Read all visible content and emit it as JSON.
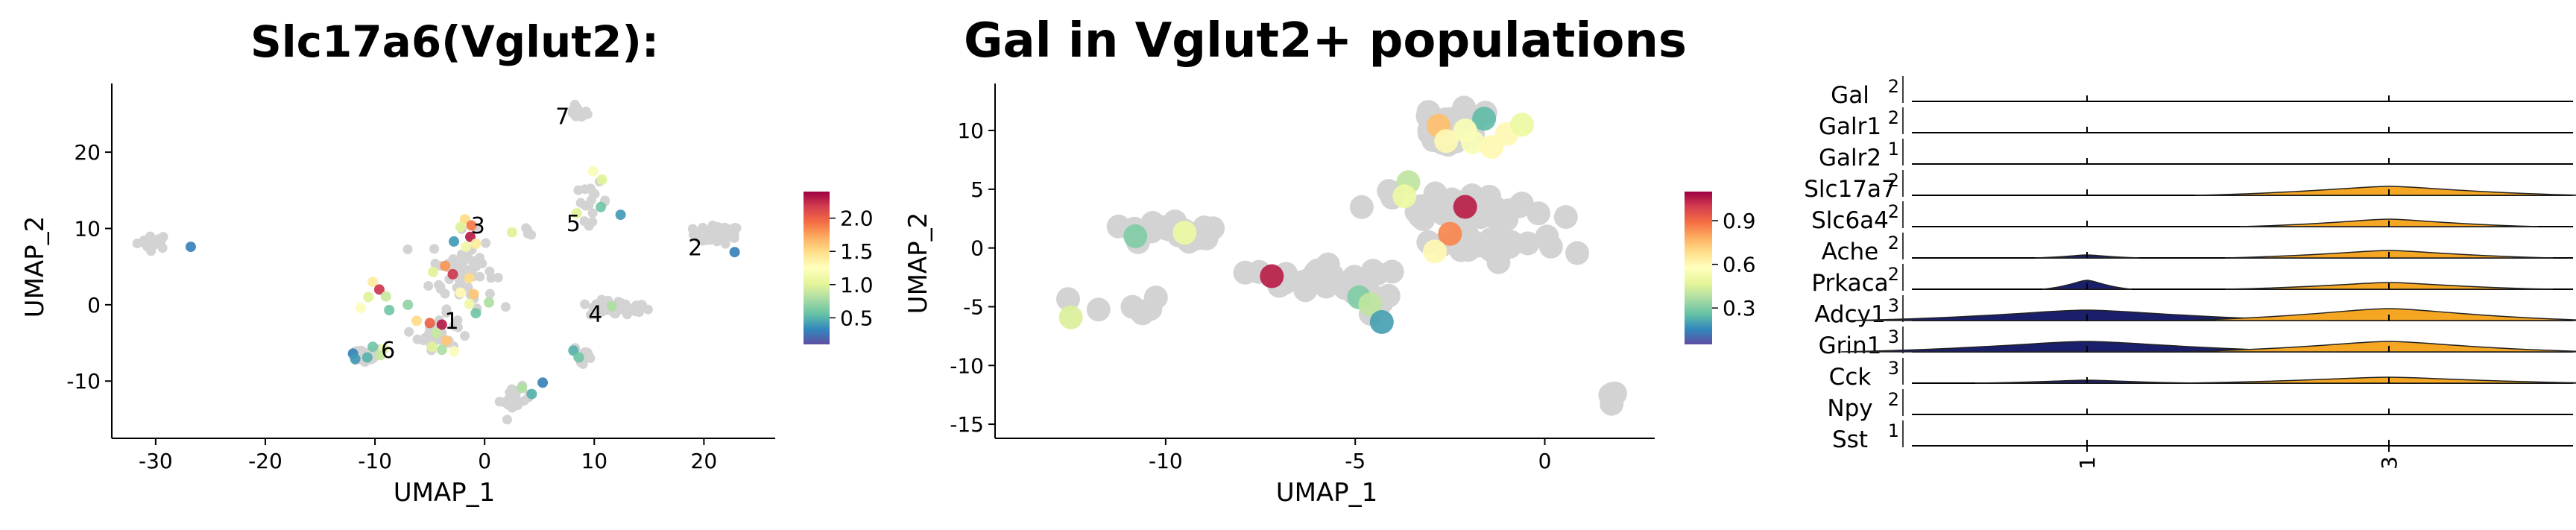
{
  "chart_data": [
    {
      "type": "scatter",
      "title": "Slc17a6(Vglut2):",
      "xlabel": "UMAP_1",
      "ylabel": "UMAP_2",
      "xlim": [
        -34,
        26.5
      ],
      "ylim": [
        -17.5,
        29
      ],
      "xticks": [
        -30,
        -20,
        -10,
        0,
        10,
        20
      ],
      "yticks": [
        -10,
        0,
        10,
        20
      ],
      "colorbar": {
        "cmap": "Spectral_r",
        "range": [
          0.1,
          2.4
        ],
        "ticks": [
          0.5,
          1.0,
          1.5,
          2.0
        ],
        "tick_labels": [
          "0.5",
          "1.0",
          "1.5",
          "2.0"
        ]
      },
      "grey_color": "#d3d3d3",
      "cluster_labels": [
        {
          "text": "1",
          "x": -3.0,
          "y": -2.3
        },
        {
          "text": "2",
          "x": 19.2,
          "y": 7.3
        },
        {
          "text": "3",
          "x": -0.6,
          "y": 10.2
        },
        {
          "text": "4",
          "x": 10.1,
          "y": -1.4
        },
        {
          "text": "5",
          "x": 8.1,
          "y": 10.5
        },
        {
          "text": "6",
          "x": -8.8,
          "y": -6.1
        },
        {
          "text": "7",
          "x": 7.1,
          "y": 24.5
        }
      ],
      "grey_clusters": [
        {
          "cx": -30.2,
          "cy": 8.3,
          "sx": 1.2,
          "sy": 0.8,
          "n": 22
        },
        {
          "cx": 21.2,
          "cy": 9.2,
          "sx": 1.8,
          "sy": 1.0,
          "n": 45
        },
        {
          "cx": 8.5,
          "cy": 25.2,
          "sx": 0.7,
          "sy": 0.7,
          "n": 18
        },
        {
          "cx": 12.3,
          "cy": -0.5,
          "sx": 2.3,
          "sy": 0.9,
          "n": 40
        },
        {
          "cx": -11.0,
          "cy": -6.6,
          "sx": 1.4,
          "sy": 0.9,
          "n": 30
        },
        {
          "cx": -2.0,
          "cy": 4.5,
          "sx": 2.4,
          "sy": 4.0,
          "n": 60
        },
        {
          "cx": -4.3,
          "cy": -3.8,
          "sx": 1.5,
          "sy": 1.7,
          "n": 30
        },
        {
          "cx": 2.8,
          "cy": -12.4,
          "sx": 1.2,
          "sy": 1.3,
          "n": 18
        },
        {
          "cx": 9.0,
          "cy": -6.8,
          "sx": 0.8,
          "sy": 1.3,
          "n": 15
        },
        {
          "cx": 9.8,
          "cy": 13.5,
          "sx": 1.2,
          "sy": 2.0,
          "n": 16
        },
        {
          "cx": 4.0,
          "cy": 9.6,
          "sx": 0.6,
          "sy": 0.4,
          "n": 4
        }
      ],
      "points": [
        {
          "x": -26.8,
          "y": 7.6,
          "v": 0.3
        },
        {
          "x": 22.8,
          "y": 6.9,
          "v": 0.3
        },
        {
          "x": 9.9,
          "y": 17.5,
          "v": 1.2
        },
        {
          "x": 10.7,
          "y": 16.4,
          "v": 1.0
        },
        {
          "x": 10.6,
          "y": 12.8,
          "v": 0.6
        },
        {
          "x": 12.4,
          "y": 11.8,
          "v": 0.4
        },
        {
          "x": 8.4,
          "y": 12.0,
          "v": 1.0
        },
        {
          "x": 2.5,
          "y": 9.5,
          "v": 1.0
        },
        {
          "x": -1.8,
          "y": 11.2,
          "v": 1.5
        },
        {
          "x": -1.2,
          "y": 10.4,
          "v": 1.9
        },
        {
          "x": -2.2,
          "y": 10.2,
          "v": 1.0
        },
        {
          "x": -1.3,
          "y": 8.9,
          "v": 2.3
        },
        {
          "x": -2.8,
          "y": 8.3,
          "v": 0.4
        },
        {
          "x": -1.7,
          "y": 7.6,
          "v": 1.1
        },
        {
          "x": -0.8,
          "y": 8.0,
          "v": 1.4
        },
        {
          "x": -3.6,
          "y": 5.1,
          "v": 1.8
        },
        {
          "x": -2.9,
          "y": 4.0,
          "v": 2.2
        },
        {
          "x": -4.7,
          "y": 4.3,
          "v": 1.0
        },
        {
          "x": -1.4,
          "y": 3.5,
          "v": 1.5
        },
        {
          "x": -2.2,
          "y": 1.6,
          "v": 1.3
        },
        {
          "x": -1.0,
          "y": 1.4,
          "v": 1.6
        },
        {
          "x": -1.4,
          "y": 0.1,
          "v": 1.1
        },
        {
          "x": 0.4,
          "y": 0.3,
          "v": 0.8
        },
        {
          "x": -0.8,
          "y": -1.1,
          "v": 0.6
        },
        {
          "x": -10.2,
          "y": 3.0,
          "v": 1.4
        },
        {
          "x": -9.6,
          "y": 2.0,
          "v": 2.2
        },
        {
          "x": -10.6,
          "y": 1.0,
          "v": 1.0
        },
        {
          "x": -9.0,
          "y": 1.1,
          "v": 0.9
        },
        {
          "x": -11.3,
          "y": -0.4,
          "v": 1.2
        },
        {
          "x": -7.0,
          "y": 0.0,
          "v": 0.7
        },
        {
          "x": -8.7,
          "y": -0.7,
          "v": 0.6
        },
        {
          "x": -6.2,
          "y": -2.1,
          "v": 1.5
        },
        {
          "x": -5.0,
          "y": -2.4,
          "v": 2.0
        },
        {
          "x": -3.9,
          "y": -2.6,
          "v": 2.3
        },
        {
          "x": -4.4,
          "y": -3.7,
          "v": 0.9
        },
        {
          "x": -3.5,
          "y": -4.7,
          "v": 1.6
        },
        {
          "x": -3.9,
          "y": -5.9,
          "v": 0.8
        },
        {
          "x": -2.8,
          "y": -6.1,
          "v": 1.2
        },
        {
          "x": -4.8,
          "y": -5.5,
          "v": 1.0
        },
        {
          "x": -10.2,
          "y": -5.5,
          "v": 0.6
        },
        {
          "x": -9.2,
          "y": -5.8,
          "v": 1.1
        },
        {
          "x": -12.0,
          "y": -6.4,
          "v": 0.3
        },
        {
          "x": -10.7,
          "y": -6.9,
          "v": 0.5
        },
        {
          "x": -11.8,
          "y": -7.1,
          "v": 0.4
        },
        {
          "x": -9.5,
          "y": -6.6,
          "v": 0.9
        },
        {
          "x": 8.1,
          "y": -6.0,
          "v": 0.5
        },
        {
          "x": 8.6,
          "y": -6.9,
          "v": 0.6
        },
        {
          "x": 3.4,
          "y": -10.9,
          "v": 0.8
        },
        {
          "x": 4.3,
          "y": -11.7,
          "v": 0.5
        },
        {
          "x": 5.3,
          "y": -10.2,
          "v": 0.3
        },
        {
          "x": 11.6,
          "y": -0.2,
          "v": 0.8
        }
      ]
    },
    {
      "type": "scatter",
      "title": "Gal in Vglut2+ populations",
      "xlabel": "UMAP_1",
      "ylabel": "UMAP_2",
      "xlim": [
        -14.5,
        2.9
      ],
      "ylim": [
        -16.2,
        14.0
      ],
      "xticks": [
        -10,
        -5,
        0
      ],
      "yticks": [
        -15,
        -10,
        -5,
        0,
        5,
        10
      ],
      "colorbar": {
        "cmap": "Spectral_r",
        "range": [
          0.05,
          1.1
        ],
        "ticks": [
          0.3,
          0.6,
          0.9
        ],
        "tick_labels": [
          "0.3",
          "0.6",
          "0.9"
        ]
      },
      "grey_color": "#d3d3d3",
      "grey_clusters": [
        {
          "cx": -2.4,
          "cy": 10.2,
          "sx": 0.9,
          "sy": 1.1,
          "n": 40
        },
        {
          "cx": -2.3,
          "cy": 3.2,
          "sx": 1.7,
          "sy": 0.9,
          "n": 40
        },
        {
          "cx": -1.3,
          "cy": 0.2,
          "sx": 1.4,
          "sy": 0.8,
          "n": 28
        },
        {
          "cx": -5.8,
          "cy": -2.6,
          "sx": 1.3,
          "sy": 0.8,
          "n": 35
        },
        {
          "cx": -9.8,
          "cy": 1.4,
          "sx": 1.1,
          "sy": 0.8,
          "n": 18
        },
        {
          "cx": -11.5,
          "cy": -5.0,
          "sx": 1.3,
          "sy": 1.0,
          "n": 6
        },
        {
          "cx": 1.8,
          "cy": -13.0,
          "sx": 0.15,
          "sy": 0.8,
          "n": 5
        },
        {
          "cx": -4.5,
          "cy": -4.8,
          "sx": 0.4,
          "sy": 0.7,
          "n": 10
        }
      ],
      "points": [
        {
          "x": -2.8,
          "y": 10.4,
          "v": 0.75
        },
        {
          "x": -1.6,
          "y": 11.0,
          "v": 0.25
        },
        {
          "x": -2.1,
          "y": 10.0,
          "v": 0.55
        },
        {
          "x": -1.0,
          "y": 9.7,
          "v": 0.6
        },
        {
          "x": -1.9,
          "y": 9.0,
          "v": 0.55
        },
        {
          "x": -0.6,
          "y": 10.5,
          "v": 0.5
        },
        {
          "x": -1.4,
          "y": 8.6,
          "v": 0.6
        },
        {
          "x": -2.6,
          "y": 9.1,
          "v": 0.6
        },
        {
          "x": -3.6,
          "y": 5.6,
          "v": 0.4
        },
        {
          "x": -3.7,
          "y": 4.4,
          "v": 0.5
        },
        {
          "x": -2.1,
          "y": 3.5,
          "v": 1.05
        },
        {
          "x": -2.5,
          "y": 1.2,
          "v": 0.85
        },
        {
          "x": -2.9,
          "y": -0.3,
          "v": 0.6
        },
        {
          "x": -10.8,
          "y": 1.0,
          "v": 0.3
        },
        {
          "x": -9.5,
          "y": 1.3,
          "v": 0.5
        },
        {
          "x": -7.2,
          "y": -2.4,
          "v": 1.05
        },
        {
          "x": -4.9,
          "y": -4.2,
          "v": 0.3
        },
        {
          "x": -4.6,
          "y": -4.8,
          "v": 0.4
        },
        {
          "x": -4.3,
          "y": -6.3,
          "v": 0.2
        },
        {
          "x": -12.5,
          "y": -5.9,
          "v": 0.45
        }
      ]
    },
    {
      "type": "violin",
      "categories": [
        "1",
        "3"
      ],
      "row_labels": [
        "Gal",
        "Galr1",
        "Galr2",
        "Slc17a7",
        "Slc6a4",
        "Ache",
        "Prkaca",
        "Adcy1",
        "Grin1",
        "Cck",
        "Npy",
        "Sst"
      ],
      "row_max": [
        "2",
        "2",
        "1",
        "2",
        "2",
        "2",
        "2",
        "3",
        "3",
        "3",
        "2",
        "1"
      ],
      "row_min": "",
      "colors": {
        "1": "#1a1f6b",
        "3": "#f5a623"
      }
    }
  ]
}
